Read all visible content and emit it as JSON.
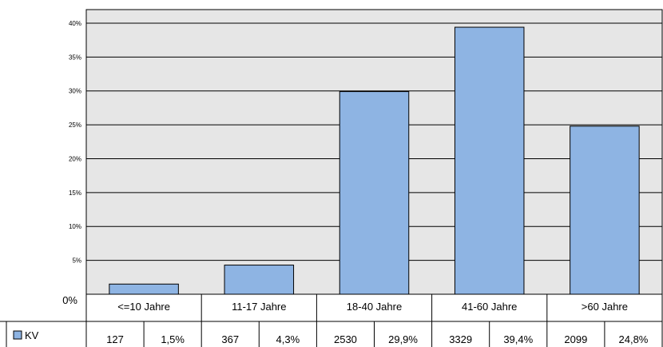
{
  "chart_data": {
    "type": "bar",
    "categories": [
      "<=10 Jahre",
      "11-17 Jahre",
      "18-40 Jahre",
      "41-60 Jahre",
      ">60 Jahre"
    ],
    "series": [
      {
        "name": "KV",
        "values": [
          1.5,
          4.3,
          29.9,
          39.4,
          24.8
        ],
        "counts": [
          "127",
          "367",
          "2530",
          "3329",
          "2099"
        ],
        "percent_labels": [
          "1,5%",
          "4,3%",
          "29,9%",
          "39,4%",
          "24,8%"
        ]
      }
    ],
    "yticks": [
      "0%",
      "5%",
      "10%",
      "15%",
      "20%",
      "25%",
      "30%",
      "35%",
      "40%"
    ],
    "ylim": [
      0,
      42
    ],
    "grid": true,
    "legend": "bottom-left table",
    "colors": {
      "bar": "#8eb4e3",
      "plot_bg": "#e6e6e6",
      "grid": "#000000"
    }
  }
}
